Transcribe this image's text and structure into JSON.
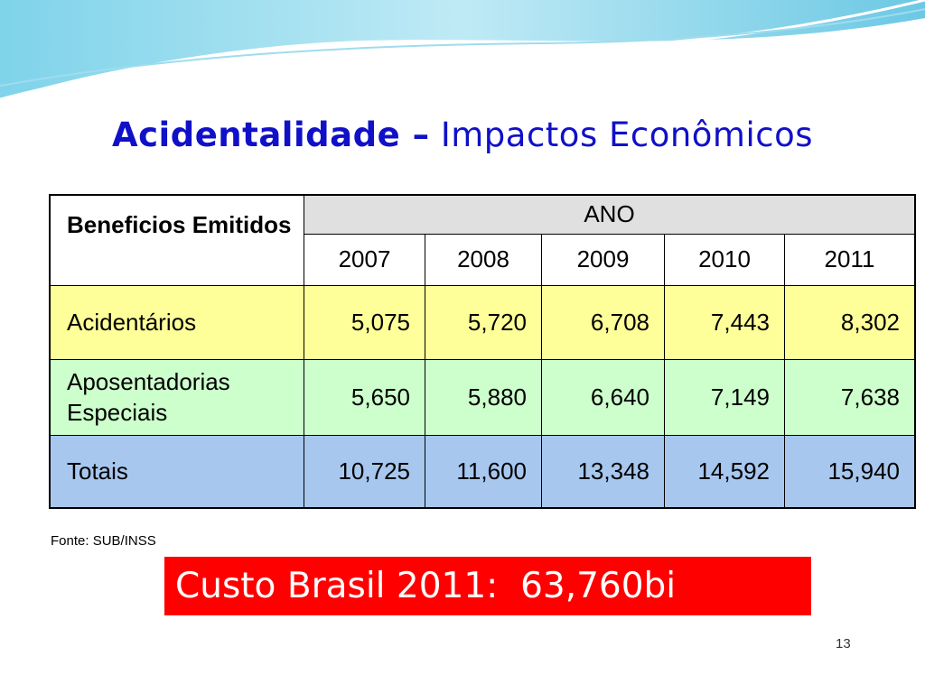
{
  "header": {
    "title_bold": "Acidentalidade –",
    "title_rest": "Impactos Econômicos"
  },
  "table": {
    "corner": "Beneficios Emitidos",
    "group_header": "ANO",
    "years": [
      "2007",
      "2008",
      "2009",
      "2010",
      "2011"
    ],
    "rows": [
      {
        "label": "Acidentários",
        "values": [
          "5,075",
          "5,720",
          "6,708",
          "7,443",
          "8,302"
        ]
      },
      {
        "label": "Aposentadorias Especiais",
        "values": [
          "5,650",
          "5,880",
          "6,640",
          "7,149",
          "7,638"
        ]
      },
      {
        "label": "Totais",
        "values": [
          "10,725",
          "11,600",
          "13,348",
          "14,592",
          "15,940"
        ]
      }
    ]
  },
  "source": "Fonte: SUB/INSS",
  "callout": "Custo Brasil 2011:  63,760bi",
  "page_number": "13"
}
